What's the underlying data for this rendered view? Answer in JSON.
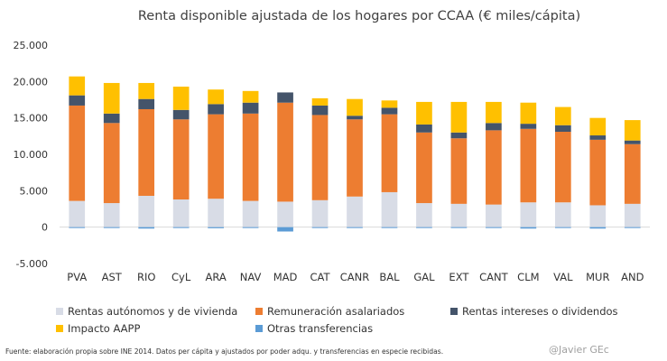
{
  "chart_data": {
    "type": "bar",
    "stacked": true,
    "title": "Renta disponible ajustada de los hogares por CCAA (€ miles/cápita)",
    "xlabel": "",
    "ylabel": "",
    "ylim": [
      -5000,
      25000
    ],
    "yticks": [
      -5000,
      0,
      5000,
      10000,
      15000,
      20000,
      25000
    ],
    "ytick_labels": [
      "-5.000",
      "0",
      "5.000",
      "10.000",
      "15.000",
      "20.000",
      "25.000"
    ],
    "grid": false,
    "legend_position": "bottom",
    "categories": [
      "PVA",
      "AST",
      "RIO",
      "CyL",
      "ARA",
      "NAV",
      "MAD",
      "CAT",
      "CANR",
      "BAL",
      "GAL",
      "EXT",
      "CANT",
      "CLM",
      "VAL",
      "MUR",
      "AND"
    ],
    "series": [
      {
        "name": "Rentas autónomos y de vivienda",
        "color": "#d8dce6",
        "values": [
          3600,
          3300,
          4300,
          3800,
          3900,
          3600,
          3500,
          3700,
          4200,
          4800,
          3300,
          3200,
          3100,
          3400,
          3400,
          3000,
          3200
        ]
      },
      {
        "name": "Remuneración asalariados",
        "color": "#ed7d31",
        "values": [
          13100,
          11000,
          11900,
          11000,
          11600,
          12000,
          13600,
          11700,
          10600,
          10700,
          9700,
          9000,
          10200,
          10100,
          9700,
          9000,
          8200
        ]
      },
      {
        "name": "Rentas intereses o dividendos",
        "color": "#44546a",
        "values": [
          1400,
          1300,
          1400,
          1300,
          1400,
          1500,
          1400,
          1300,
          500,
          900,
          1100,
          800,
          1000,
          700,
          900,
          600,
          500
        ]
      },
      {
        "name": "Impacto AAPP",
        "color": "#ffc000",
        "values": [
          2600,
          4200,
          2200,
          3200,
          2000,
          1600,
          0,
          1000,
          2300,
          1000,
          3100,
          4200,
          2900,
          2900,
          2500,
          2400,
          2800
        ]
      },
      {
        "name": "Otras transferencias",
        "color": "#5b9bd5",
        "values": [
          -100,
          -100,
          -200,
          -100,
          -150,
          -100,
          -600,
          -100,
          -100,
          -100,
          -100,
          -100,
          -100,
          -200,
          -100,
          -200,
          -100
        ]
      }
    ]
  },
  "footer": {
    "source": "Fuente: elaboración propia sobre INE 2014. Datos per cápita y ajustados por poder adqu. y transferencias en especie recibidas.",
    "credit": "@Javier GEc"
  }
}
